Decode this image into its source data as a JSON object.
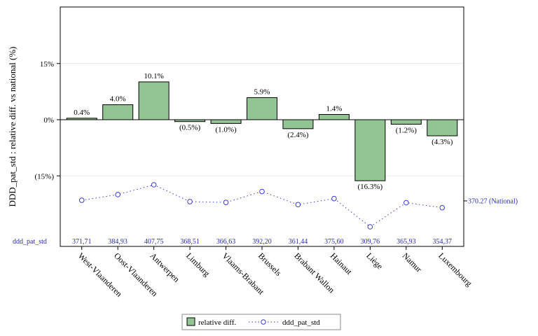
{
  "chart_data": {
    "type": "bar",
    "categories": [
      "West-Vlaanderen",
      "Oost-Vlaanderen",
      "Antwerpen",
      "Limburg",
      "Vlaams-Brabant",
      "Brussels",
      "Brabant Wallon",
      "Hainaut",
      "Liège",
      "Namur",
      "Luxembourg"
    ],
    "ylabel": "DDD_pat_std : relative diff. vs national (%)",
    "y_ticks": [
      "15%",
      "0%",
      "(15%)"
    ],
    "ylim": [
      -32,
      30
    ],
    "series": [
      {
        "name": "relative diff.",
        "type": "bar",
        "color": "#93c493",
        "values": [
          0.4,
          4.0,
          10.1,
          -0.5,
          -1.0,
          5.9,
          -2.4,
          1.4,
          -16.3,
          -1.2,
          -4.3
        ],
        "labels": [
          "0.4%",
          "4.0%",
          "10.1%",
          "(0.5%)",
          "(1.0%)",
          "5.9%",
          "(2.4%)",
          "1.4%",
          "(16.3%)",
          "(1.2%)",
          "(4.3%)"
        ]
      },
      {
        "name": "ddd_pat_std",
        "type": "line",
        "style": "dotted, open circle markers",
        "color": "#3b3bd6",
        "values": [
          371.71,
          384.93,
          407.75,
          368.51,
          366.63,
          392.2,
          361.44,
          375.6,
          309.76,
          365.93,
          354.37
        ],
        "labels": [
          "371,71",
          "384,93",
          "407,75",
          "368,51",
          "366,63",
          "392,20",
          "361,44",
          "375,60",
          "309,76",
          "365,93",
          "354,37"
        ]
      }
    ],
    "reference_line": {
      "value": 370.27,
      "label": "370.27 (National)"
    },
    "table_row_label": "ddd_pat_std",
    "legend": {
      "position": "bottom-center",
      "entries": [
        "relative diff.",
        "ddd_pat_std"
      ]
    },
    "grid": "horizontal"
  }
}
